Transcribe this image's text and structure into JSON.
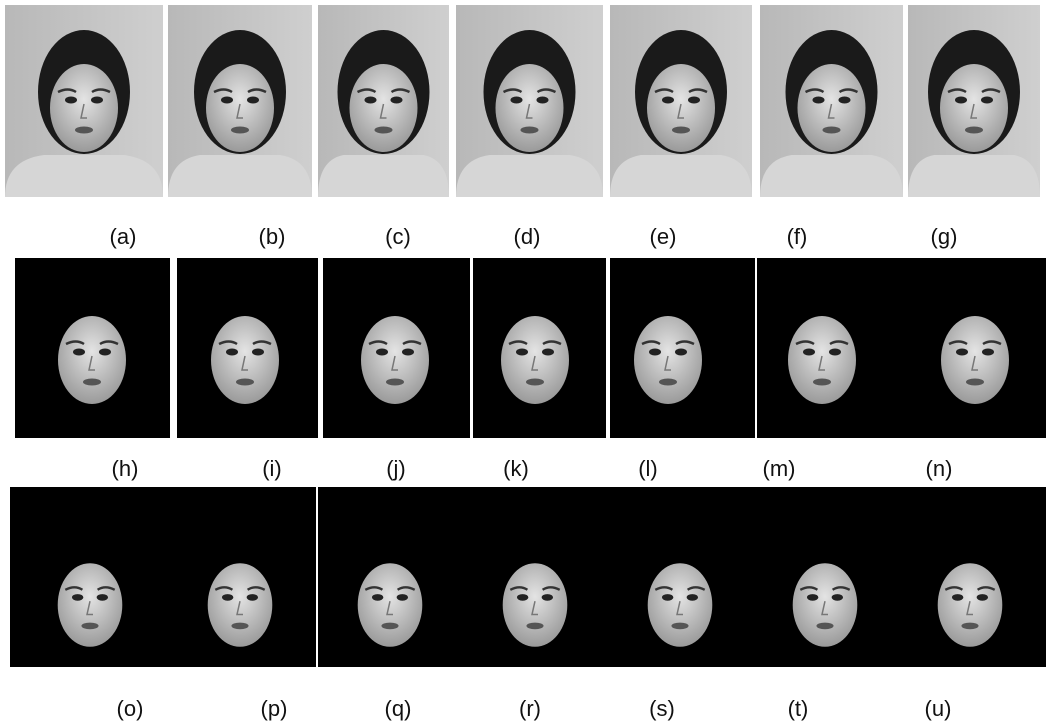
{
  "labels": [
    "(a)",
    "(b)",
    "(c)",
    "(d)",
    "(e)",
    "(f)",
    "(g)",
    "(h)",
    "(i)",
    "(j)",
    "(k)",
    "(l)",
    "(m)",
    "(n)",
    "(o)",
    "(p)",
    "(q)",
    "(r)",
    "(s)",
    "(t)",
    "(u)"
  ]
}
